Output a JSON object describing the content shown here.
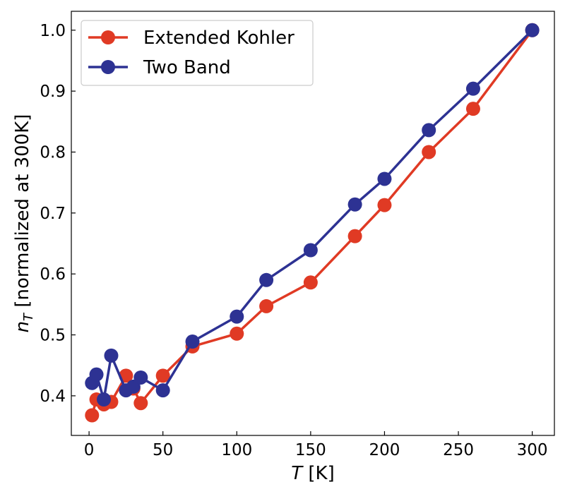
{
  "chart_data": {
    "type": "line",
    "xlabel": {
      "italic": "T",
      "rest": " [K]"
    },
    "ylabel": {
      "base": "n",
      "sub": "T",
      "rest": " [normalized at 300K]"
    },
    "xlim": [
      -12,
      315
    ],
    "ylim": [
      0.335,
      1.031
    ],
    "xticks": [
      0,
      50,
      100,
      150,
      200,
      250,
      300
    ],
    "yticks": [
      0.4,
      0.5,
      0.6,
      0.7,
      0.8,
      0.9,
      1.0
    ],
    "ytick_labels": [
      "0.4",
      "0.5",
      "0.6",
      "0.7",
      "0.8",
      "0.9",
      "1.0"
    ],
    "grid": false,
    "legend_position": "top-left",
    "series": [
      {
        "name": "Extended Kohler",
        "color": "#e03a24",
        "x": [
          2,
          5,
          10,
          15,
          25,
          30,
          35,
          50,
          70,
          100,
          120,
          150,
          180,
          200,
          230,
          260,
          300
        ],
        "y": [
          0.368,
          0.394,
          0.386,
          0.39,
          0.433,
          0.412,
          0.388,
          0.433,
          0.481,
          0.502,
          0.547,
          0.586,
          0.662,
          0.713,
          0.8,
          0.871,
          1.0
        ]
      },
      {
        "name": "Two Band",
        "color": "#2d3293",
        "x": [
          2,
          5,
          10,
          15,
          25,
          30,
          35,
          50,
          70,
          100,
          120,
          150,
          180,
          200,
          230,
          260,
          300
        ],
        "y": [
          0.421,
          0.435,
          0.394,
          0.466,
          0.409,
          0.415,
          0.43,
          0.409,
          0.489,
          0.53,
          0.59,
          0.639,
          0.714,
          0.756,
          0.836,
          0.904,
          1.0
        ]
      }
    ]
  }
}
